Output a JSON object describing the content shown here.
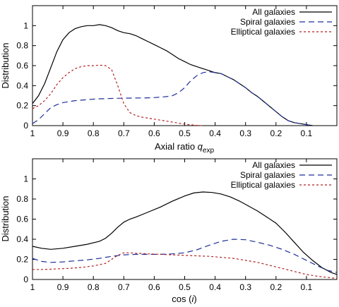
{
  "chart_data": [
    {
      "type": "line",
      "ylabel": "Distribution",
      "xlabel_main": "Axial ratio ",
      "xlabel_italic": "q",
      "xlabel_sub": "exp",
      "xlim": [
        1,
        0
      ],
      "ylim": [
        0,
        1.2
      ],
      "xticks": [
        1,
        0.9,
        0.8,
        0.7,
        0.6,
        0.5,
        0.4,
        0.3,
        0.2,
        0.1
      ],
      "xtick_labels": [
        "1",
        "0.9",
        "0.8",
        "0.7",
        "0.6",
        "0.5",
        "0.4",
        "0.3",
        "0.2",
        "0.1"
      ],
      "yticks": [
        0,
        0.2,
        0.4,
        0.6,
        0.8,
        1
      ],
      "ytick_labels": [
        "0",
        "0.2",
        "0.4",
        "0.6",
        "0.8",
        "1"
      ],
      "grid": false,
      "legend_position": "top-right",
      "series": [
        {
          "name": "All galaxies",
          "color": "#000000",
          "dash": "solid",
          "x": [
            1.0,
            0.98,
            0.96,
            0.94,
            0.92,
            0.9,
            0.88,
            0.86,
            0.84,
            0.82,
            0.8,
            0.78,
            0.76,
            0.74,
            0.72,
            0.7,
            0.68,
            0.66,
            0.64,
            0.62,
            0.6,
            0.58,
            0.56,
            0.54,
            0.52,
            0.5,
            0.48,
            0.46,
            0.44,
            0.42,
            0.4,
            0.38,
            0.36,
            0.34,
            0.32,
            0.3,
            0.28,
            0.26,
            0.24,
            0.22,
            0.2,
            0.18,
            0.16,
            0.14,
            0.12,
            0.1,
            0.08
          ],
          "y": [
            0.22,
            0.3,
            0.42,
            0.58,
            0.74,
            0.86,
            0.93,
            0.97,
            0.99,
            1.0,
            1.0,
            1.01,
            1.0,
            0.98,
            0.95,
            0.93,
            0.92,
            0.9,
            0.87,
            0.84,
            0.81,
            0.78,
            0.75,
            0.71,
            0.67,
            0.64,
            0.61,
            0.59,
            0.57,
            0.55,
            0.53,
            0.52,
            0.49,
            0.46,
            0.42,
            0.38,
            0.33,
            0.29,
            0.24,
            0.19,
            0.14,
            0.09,
            0.05,
            0.03,
            0.02,
            0.01,
            0.0
          ]
        },
        {
          "name": "Spiral galaxies",
          "color": "#1f2f99",
          "dash": "8,5",
          "x": [
            1.0,
            0.98,
            0.96,
            0.94,
            0.92,
            0.9,
            0.88,
            0.86,
            0.84,
            0.82,
            0.8,
            0.78,
            0.76,
            0.74,
            0.72,
            0.7,
            0.68,
            0.66,
            0.64,
            0.62,
            0.6,
            0.58,
            0.56,
            0.54,
            0.52,
            0.5,
            0.48,
            0.46,
            0.44,
            0.42,
            0.4,
            0.38,
            0.36,
            0.34,
            0.32,
            0.3,
            0.28,
            0.26,
            0.24,
            0.22,
            0.2,
            0.18,
            0.16,
            0.14,
            0.12,
            0.1,
            0.08
          ],
          "y": [
            0.02,
            0.06,
            0.12,
            0.18,
            0.21,
            0.23,
            0.24,
            0.25,
            0.255,
            0.26,
            0.265,
            0.268,
            0.27,
            0.272,
            0.273,
            0.275,
            0.275,
            0.276,
            0.277,
            0.278,
            0.28,
            0.285,
            0.29,
            0.3,
            0.33,
            0.38,
            0.45,
            0.5,
            0.53,
            0.54,
            0.53,
            0.52,
            0.49,
            0.46,
            0.42,
            0.38,
            0.33,
            0.29,
            0.24,
            0.19,
            0.14,
            0.09,
            0.05,
            0.03,
            0.02,
            0.01,
            0.0
          ]
        },
        {
          "name": "Elliptical galaxies",
          "color": "#b22222",
          "dash": "3,3",
          "x": [
            1.0,
            0.98,
            0.96,
            0.94,
            0.92,
            0.9,
            0.88,
            0.86,
            0.84,
            0.82,
            0.8,
            0.78,
            0.76,
            0.74,
            0.72,
            0.7,
            0.68,
            0.66,
            0.64,
            0.62,
            0.6,
            0.58,
            0.56,
            0.54,
            0.52,
            0.5,
            0.48,
            0.46,
            0.44
          ],
          "y": [
            0.17,
            0.2,
            0.25,
            0.32,
            0.41,
            0.48,
            0.53,
            0.57,
            0.59,
            0.6,
            0.6,
            0.605,
            0.6,
            0.56,
            0.4,
            0.22,
            0.13,
            0.1,
            0.085,
            0.075,
            0.065,
            0.055,
            0.045,
            0.035,
            0.025,
            0.015,
            0.008,
            0.003,
            0.0
          ]
        }
      ]
    },
    {
      "type": "line",
      "ylabel": "Distribution",
      "xlabel_main": "cos (",
      "xlabel_italic": "i",
      "xlabel_sub": "",
      "xlabel_end": ")",
      "xlim": [
        1,
        0
      ],
      "ylim": [
        0,
        1.2
      ],
      "xticks": [
        1,
        0.9,
        0.8,
        0.7,
        0.6,
        0.5,
        0.4,
        0.3,
        0.2,
        0.1
      ],
      "xtick_labels": [
        "1",
        "0.9",
        "0.8",
        "0.7",
        "0.6",
        "0.5",
        "0.4",
        "0.3",
        "0.2",
        "0.1"
      ],
      "yticks": [
        0,
        0.2,
        0.4,
        0.6,
        0.8,
        1
      ],
      "ytick_labels": [
        "0",
        "0.2",
        "0.4",
        "0.6",
        "0.8",
        "1"
      ],
      "grid": false,
      "legend_position": "top-right",
      "series": [
        {
          "name": "All galaxies",
          "color": "#000000",
          "dash": "solid",
          "x": [
            1.0,
            0.97,
            0.94,
            0.9,
            0.86,
            0.82,
            0.78,
            0.76,
            0.74,
            0.72,
            0.7,
            0.68,
            0.66,
            0.62,
            0.58,
            0.54,
            0.5,
            0.47,
            0.44,
            0.41,
            0.38,
            0.35,
            0.32,
            0.29,
            0.26,
            0.23,
            0.2,
            0.17,
            0.14,
            0.11,
            0.08,
            0.05,
            0.02,
            0.0
          ],
          "y": [
            0.33,
            0.31,
            0.3,
            0.31,
            0.33,
            0.35,
            0.38,
            0.41,
            0.46,
            0.52,
            0.57,
            0.6,
            0.62,
            0.67,
            0.72,
            0.78,
            0.83,
            0.86,
            0.87,
            0.865,
            0.85,
            0.82,
            0.78,
            0.73,
            0.68,
            0.62,
            0.56,
            0.47,
            0.37,
            0.27,
            0.19,
            0.12,
            0.07,
            0.05
          ]
        },
        {
          "name": "Spiral galaxies",
          "color": "#1f2f99",
          "dash": "8,5",
          "x": [
            1.0,
            0.97,
            0.94,
            0.9,
            0.86,
            0.82,
            0.78,
            0.74,
            0.7,
            0.66,
            0.62,
            0.58,
            0.54,
            0.5,
            0.46,
            0.42,
            0.38,
            0.34,
            0.3,
            0.26,
            0.22,
            0.18,
            0.14,
            0.1,
            0.06,
            0.03,
            0.0
          ],
          "y": [
            0.21,
            0.18,
            0.17,
            0.175,
            0.185,
            0.195,
            0.21,
            0.23,
            0.245,
            0.25,
            0.25,
            0.25,
            0.255,
            0.265,
            0.295,
            0.34,
            0.38,
            0.4,
            0.395,
            0.37,
            0.34,
            0.3,
            0.25,
            0.19,
            0.13,
            0.09,
            0.07
          ]
        },
        {
          "name": "Elliptical galaxies",
          "color": "#b22222",
          "dash": "3,3",
          "x": [
            1.0,
            0.96,
            0.92,
            0.88,
            0.84,
            0.8,
            0.76,
            0.74,
            0.72,
            0.7,
            0.68,
            0.66,
            0.62,
            0.58,
            0.54,
            0.5,
            0.46,
            0.42,
            0.38,
            0.34,
            0.3,
            0.26,
            0.22,
            0.18,
            0.14,
            0.1,
            0.06,
            0.03,
            0.0
          ],
          "y": [
            0.1,
            0.1,
            0.105,
            0.11,
            0.12,
            0.135,
            0.16,
            0.2,
            0.24,
            0.265,
            0.265,
            0.26,
            0.255,
            0.25,
            0.245,
            0.24,
            0.235,
            0.23,
            0.22,
            0.21,
            0.19,
            0.17,
            0.14,
            0.11,
            0.08,
            0.05,
            0.03,
            0.02,
            0.01
          ]
        }
      ]
    }
  ]
}
